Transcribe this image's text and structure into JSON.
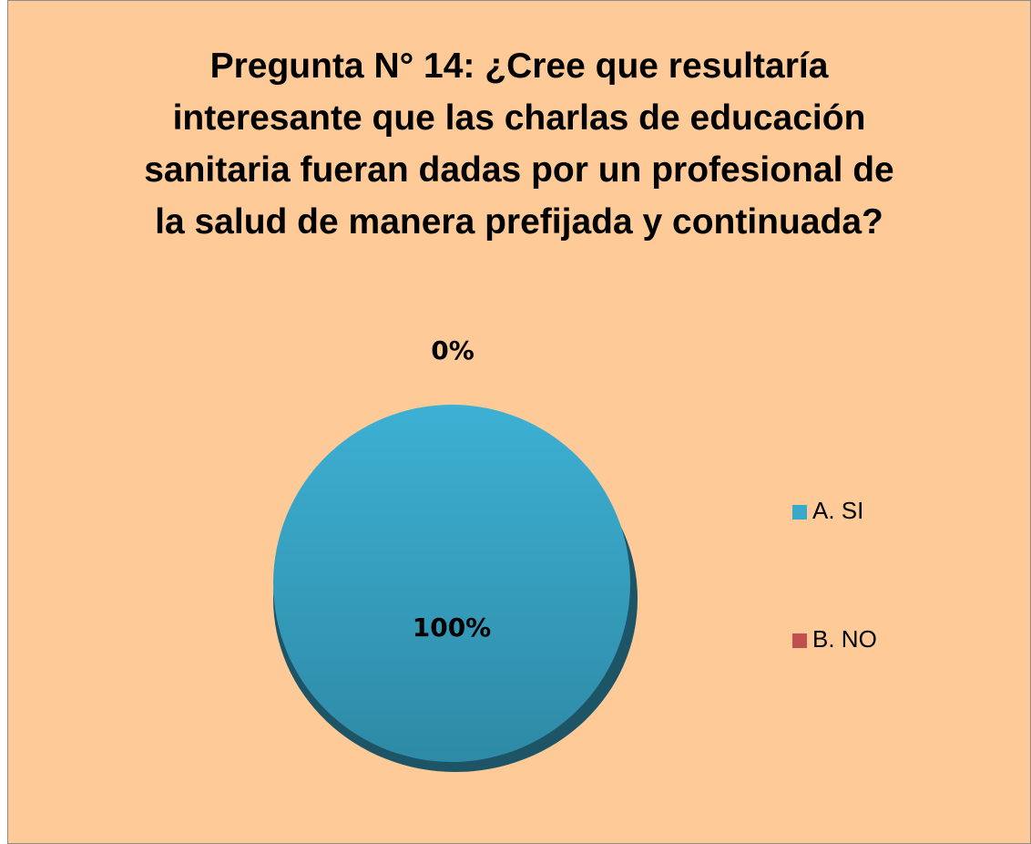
{
  "chart_data": {
    "type": "pie",
    "title": "Pregunta N° 14: ¿Cree que resultaría interesante que las charlas de educación sanitaria fueran dadas por un profesional de la salud de manera prefijada y continuada?",
    "categories": [
      "A. SI",
      "B. NO"
    ],
    "values": [
      100,
      0
    ],
    "value_labels": [
      "100%",
      "0%"
    ],
    "colors": [
      "#3aa9c9",
      "#c0504d"
    ],
    "legend": "right"
  }
}
